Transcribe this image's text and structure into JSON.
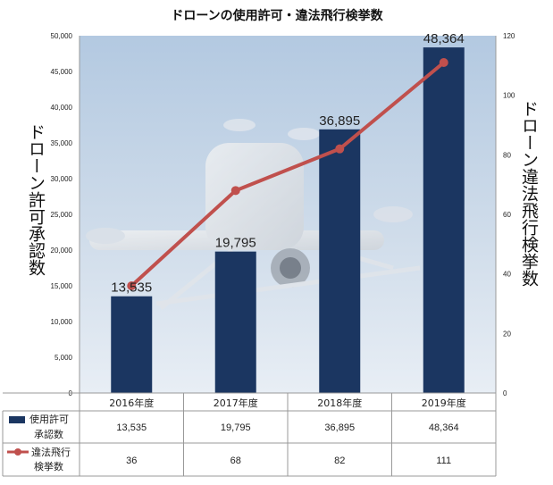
{
  "chart_data": {
    "type": "bar",
    "title": "ドローンの使用許可・違法飛行検挙数",
    "categories": [
      "2016年度",
      "2017年度",
      "2018年度",
      "2019年度"
    ],
    "series": [
      {
        "name": "使用許可承認数",
        "type": "bar",
        "axis": "left",
        "values": [
          13535,
          19795,
          36895,
          48364
        ],
        "value_labels": [
          "13,535",
          "19,795",
          "36,895",
          "48,364"
        ],
        "color": "#1b3661"
      },
      {
        "name": "違法飛行検挙数",
        "type": "line",
        "axis": "right",
        "values": [
          36,
          68,
          82,
          111
        ],
        "value_labels": [
          "36",
          "68",
          "82",
          "111"
        ],
        "color": "#c0504d"
      }
    ],
    "ylabel_left": "ドローン許可承認数",
    "ylabel_right": "ドローン違法飛行検挙数",
    "ylim_left": [
      0,
      50000
    ],
    "ylim_right": [
      0,
      120
    ],
    "yticks_left": [
      "0",
      "5,000",
      "10,000",
      "15,000",
      "20,000",
      "25,000",
      "30,000",
      "35,000",
      "40,000",
      "45,000",
      "50,000"
    ],
    "yticks_right": [
      "0",
      "20",
      "40",
      "60",
      "80",
      "100",
      "120"
    ],
    "data_table": true,
    "background": "drone photograph over sky",
    "colors": {
      "bar": "#1b3661",
      "line": "#c0504d",
      "sky_top": "#b9cde3",
      "sky_bottom": "#e6eef6"
    }
  }
}
